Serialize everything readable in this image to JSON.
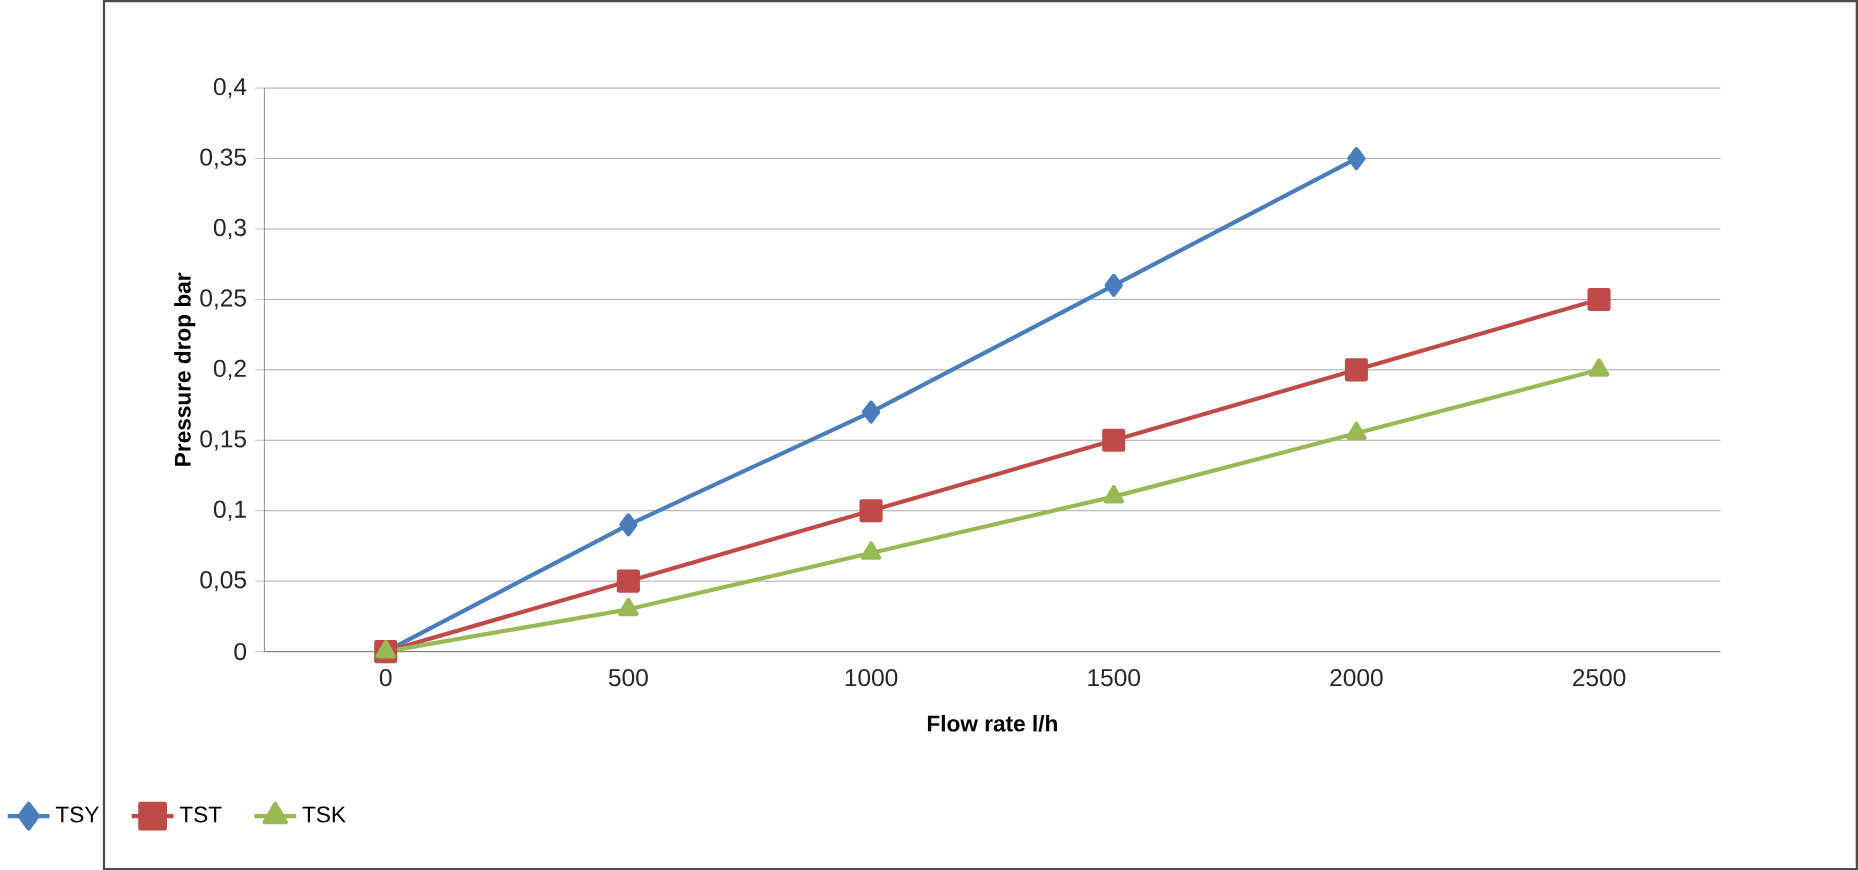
{
  "chart_data": {
    "type": "line",
    "xlabel": "Flow rate l/h",
    "ylabel": "Pressure drop bar",
    "categories": [
      "0",
      "500",
      "1000",
      "1500",
      "2000",
      "2500"
    ],
    "series": [
      {
        "name": "TSY",
        "color": "#4a7ebb",
        "marker": "diamond",
        "values": [
          0,
          0.09,
          0.17,
          0.26,
          0.35,
          null
        ]
      },
      {
        "name": "TST",
        "color": "#be4b48",
        "marker": "square",
        "values": [
          0,
          0.05,
          0.1,
          0.15,
          0.2,
          0.25
        ]
      },
      {
        "name": "TSK",
        "color": "#98b954",
        "marker": "triangle",
        "values": [
          0,
          0.03,
          0.07,
          0.11,
          0.155,
          0.2
        ]
      }
    ],
    "ylim": [
      0,
      0.4
    ],
    "yticks": [
      0,
      {
        "value": 0.05,
        "label": "0,05"
      },
      {
        "value": 0.1,
        "label": "0,1"
      },
      {
        "value": 0.15,
        "label": "0,15"
      },
      {
        "value": 0.2,
        "label": "0,2"
      },
      {
        "value": 0.25,
        "label": "0,25"
      },
      {
        "value": 0.3,
        "label": "0,3"
      },
      {
        "value": 0.35,
        "label": "0,35"
      },
      {
        "value": 0.4,
        "label": "0,4"
      }
    ],
    "grid": "y",
    "legend": "bottom left"
  }
}
